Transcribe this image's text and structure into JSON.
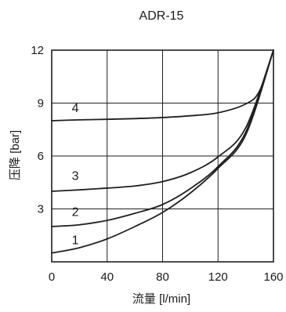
{
  "chart_data": {
    "type": "line",
    "title": "ADR-15",
    "xlabel": "流量 [l/min]",
    "ylabel": "压降 [bar]",
    "xlim": [
      0,
      160
    ],
    "ylim": [
      0,
      12
    ],
    "xticks": [
      0,
      40,
      80,
      120,
      160
    ],
    "yticks": [
      3,
      6,
      9,
      12
    ],
    "grid": true,
    "series": [
      {
        "name": "1",
        "x": [
          0,
          20,
          40,
          60,
          80,
          100,
          120,
          140,
          160
        ],
        "y": [
          0.5,
          0.8,
          1.3,
          2.0,
          2.8,
          3.9,
          5.3,
          7.2,
          12.0
        ]
      },
      {
        "name": "2",
        "x": [
          0,
          20,
          40,
          60,
          80,
          100,
          120,
          140,
          160
        ],
        "y": [
          2.0,
          2.1,
          2.35,
          2.75,
          3.25,
          4.15,
          5.4,
          7.35,
          12.0
        ]
      },
      {
        "name": "3",
        "x": [
          0,
          20,
          40,
          60,
          80,
          100,
          120,
          140,
          160
        ],
        "y": [
          4.0,
          4.08,
          4.18,
          4.3,
          4.55,
          5.05,
          5.95,
          7.6,
          12.0
        ]
      },
      {
        "name": "4",
        "x": [
          0,
          20,
          40,
          60,
          80,
          100,
          120,
          140,
          150,
          160
        ],
        "y": [
          8.0,
          8.05,
          8.08,
          8.12,
          8.18,
          8.28,
          8.45,
          8.95,
          9.7,
          12.0
        ]
      }
    ],
    "series_labels": [
      {
        "text": "1",
        "x": 17,
        "y": 1.0
      },
      {
        "text": "2",
        "x": 17,
        "y": 2.6
      },
      {
        "text": "3",
        "x": 17,
        "y": 4.65
      },
      {
        "text": "4",
        "x": 17,
        "y": 8.5
      }
    ]
  }
}
